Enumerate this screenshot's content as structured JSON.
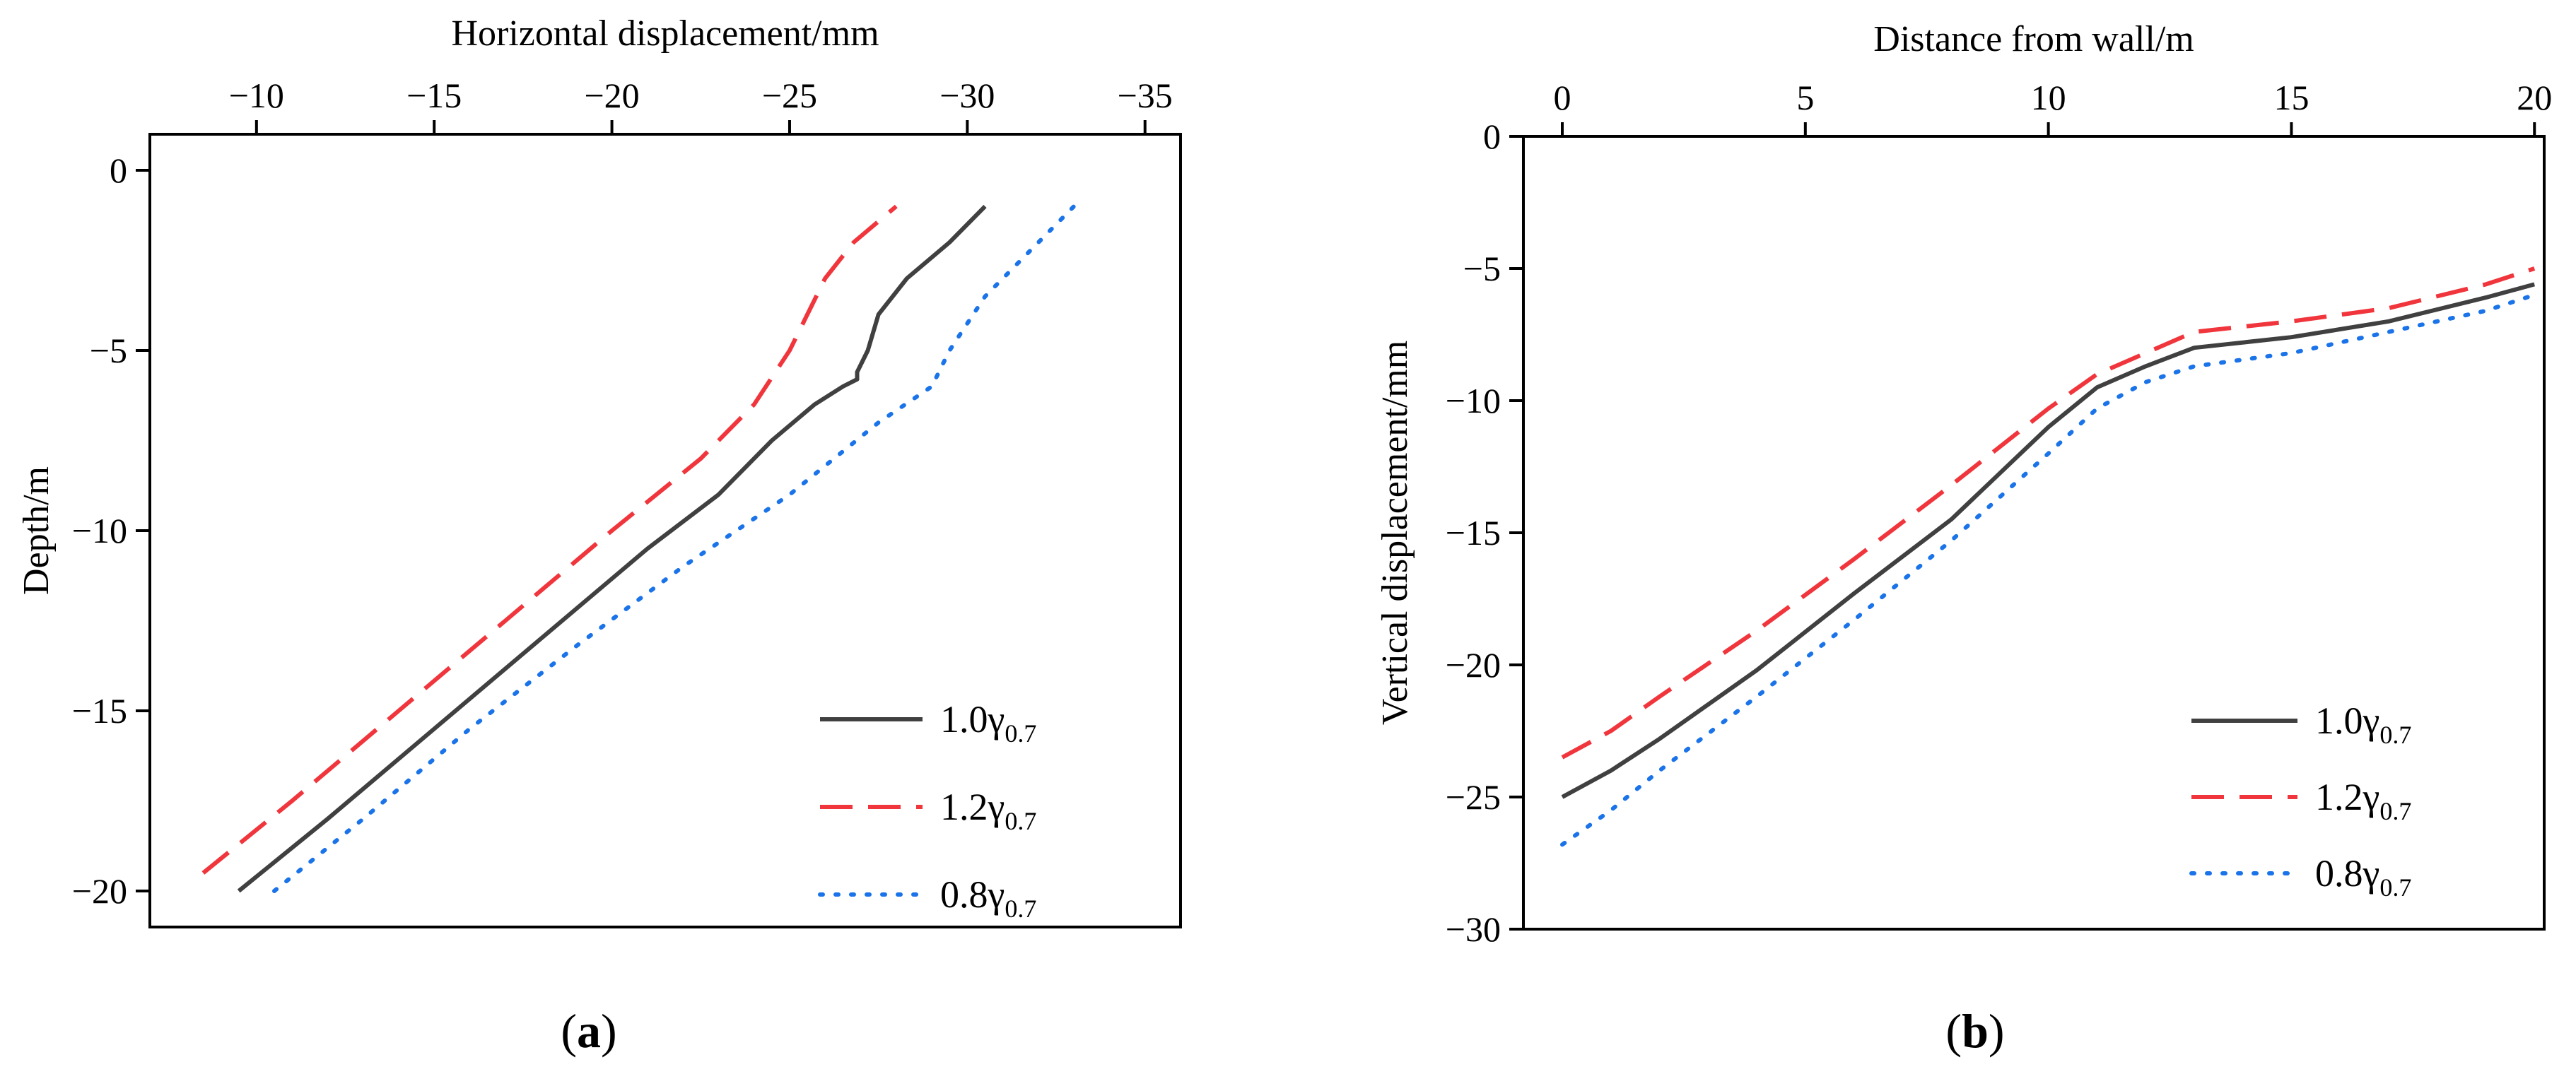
{
  "chart_data": [
    {
      "type": "line",
      "panel_label": {
        "open": "(",
        "letter": "a",
        "close": ")"
      },
      "xlabel": "Horizontal displacement/mm",
      "ylabel": "Depth/m",
      "xaxis_position": "top",
      "xlim": [
        -7,
        -36
      ],
      "ylim": [
        -21,
        1
      ],
      "xticks": [
        -10,
        -15,
        -20,
        -25,
        -30,
        -35
      ],
      "xtick_labels": [
        "−10",
        "−15",
        "−20",
        "−25",
        "−30",
        "−35"
      ],
      "yticks": [
        0,
        -5,
        -10,
        -15,
        -20
      ],
      "ytick_labels": [
        "0",
        "−5",
        "−10",
        "−15",
        "−20"
      ],
      "legend_position": "bottom-right",
      "series": [
        {
          "name": "1.0γ",
          "name_base": "1.0γ",
          "name_sub": "0.7",
          "color": "#404040",
          "style": "solid",
          "x": [
            -9.5,
            -12,
            -15,
            -18,
            -21,
            -23,
            -24.5,
            -25.7,
            -26.5,
            -26.9,
            -26.9,
            -27.2,
            -27.5,
            -28.3,
            -29.5,
            -30.5
          ],
          "y": [
            -20,
            -18,
            -15.5,
            -13,
            -10.5,
            -9,
            -7.5,
            -6.5,
            -6,
            -5.8,
            -5.6,
            -5,
            -4,
            -3,
            -2,
            -1
          ]
        },
        {
          "name": "1.2γ",
          "name_base": "1.2γ",
          "name_sub": "0.7",
          "color": "#f0363c",
          "style": "dashed",
          "x": [
            -8.5,
            -11,
            -14,
            -17,
            -20,
            -22.5,
            -24,
            -25,
            -25.5,
            -26,
            -26.8,
            -28
          ],
          "y": [
            -19.5,
            -17.5,
            -15,
            -12.5,
            -10,
            -8,
            -6.5,
            -5,
            -4,
            -3,
            -2,
            -1
          ]
        },
        {
          "name": "0.8γ",
          "name_base": "0.8γ",
          "name_sub": "0.7",
          "color": "#1a73e8",
          "style": "dotted",
          "x": [
            -10.5,
            -13,
            -16,
            -19,
            -22,
            -25,
            -27.5,
            -29,
            -29.5,
            -30.5,
            -31.5,
            -33
          ],
          "y": [
            -20,
            -18,
            -15.5,
            -13.2,
            -11,
            -9,
            -7,
            -6,
            -5,
            -3.5,
            -2.5,
            -1
          ]
        }
      ]
    },
    {
      "type": "line",
      "panel_label": {
        "open": "(",
        "letter": "b",
        "close": ")"
      },
      "xlabel": "Distance from wall/m",
      "ylabel": "Vertical displacement/mm",
      "xaxis_position": "top",
      "xlim": [
        -0.8,
        20.2
      ],
      "ylim": [
        -30,
        0
      ],
      "xticks": [
        0,
        5,
        10,
        15,
        20
      ],
      "xtick_labels": [
        "0",
        "5",
        "10",
        "15",
        "20"
      ],
      "yticks": [
        0,
        -5,
        -10,
        -15,
        -20,
        -25,
        -30
      ],
      "ytick_labels": [
        "0",
        "−5",
        "−10",
        "−15",
        "−20",
        "−25",
        "−30"
      ],
      "legend_position": "bottom-right",
      "series": [
        {
          "name": "1.0γ",
          "name_base": "1.0γ",
          "name_sub": "0.7",
          "color": "#404040",
          "style": "solid",
          "x": [
            0,
            1,
            2,
            4,
            6,
            8,
            10,
            11,
            12,
            13,
            15,
            17,
            19,
            20
          ],
          "y": [
            -25,
            -24,
            -22.8,
            -20.2,
            -17.3,
            -14.5,
            -11,
            -9.5,
            -8.7,
            -8,
            -7.6,
            -7,
            -6.1,
            -5.6
          ]
        },
        {
          "name": "1.2γ",
          "name_base": "1.2γ",
          "name_sub": "0.7",
          "color": "#f0363c",
          "style": "dashed",
          "x": [
            0,
            1,
            2,
            4,
            6,
            8,
            10,
            11,
            12,
            13,
            15,
            17,
            19,
            20
          ],
          "y": [
            -23.5,
            -22.5,
            -21.2,
            -18.7,
            -16,
            -13.2,
            -10.3,
            -9,
            -8.2,
            -7.4,
            -7,
            -6.5,
            -5.6,
            -5
          ]
        },
        {
          "name": "0.8γ",
          "name_base": "0.8γ",
          "name_sub": "0.7",
          "color": "#1a73e8",
          "style": "dotted",
          "x": [
            0,
            1,
            2,
            4,
            6,
            8,
            10,
            11,
            12,
            13,
            15,
            17,
            19,
            20
          ],
          "y": [
            -26.8,
            -25.5,
            -24,
            -21.2,
            -18.3,
            -15.3,
            -12,
            -10.3,
            -9.3,
            -8.7,
            -8.2,
            -7.4,
            -6.6,
            -6
          ]
        }
      ]
    }
  ]
}
